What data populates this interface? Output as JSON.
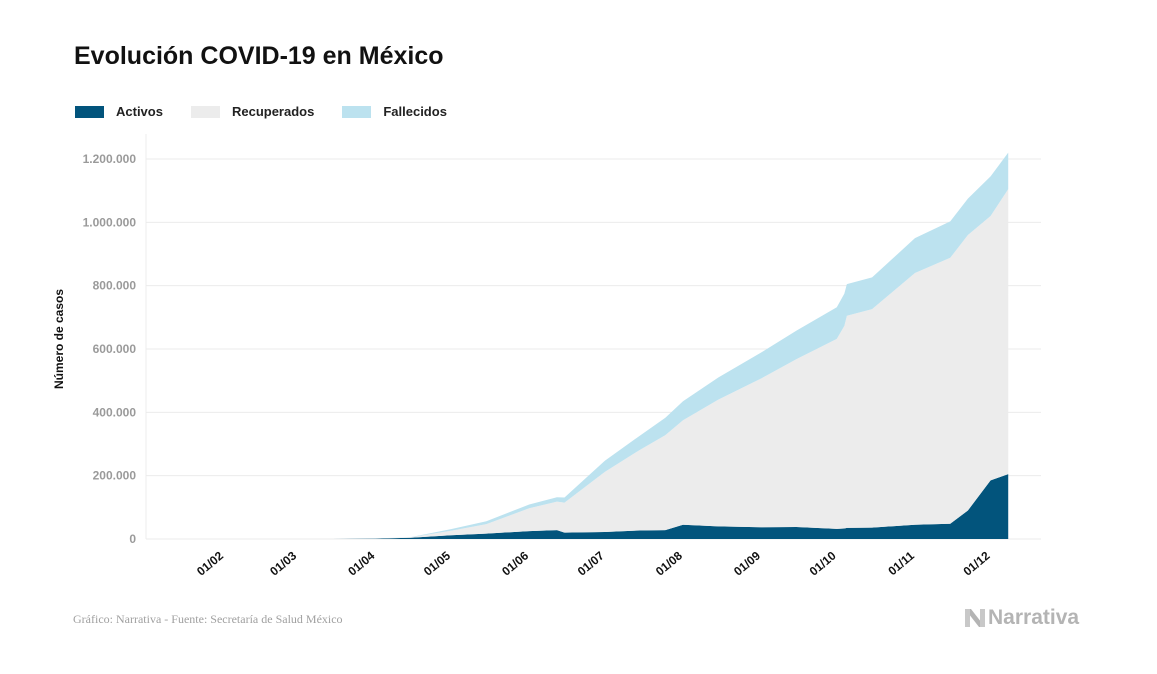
{
  "chart_data": {
    "type": "area",
    "stacked": true,
    "title": "Evolución COVID-19 en México",
    "xlabel": "",
    "ylabel": "Número de casos",
    "ylim": [
      0,
      1200000
    ],
    "xlim": [
      "2020-01-01",
      "2020-12-21"
    ],
    "grid": true,
    "legend_position": "top-left",
    "yticks": [
      0,
      200000,
      400000,
      600000,
      800000,
      1000000,
      1200000
    ],
    "ytick_labels": [
      "0",
      "200.000",
      "400.000",
      "600.000",
      "800.000",
      "1.000.000",
      "1.200.000"
    ],
    "xticks": [
      "2020-02-01",
      "2020-03-01",
      "2020-04-01",
      "2020-05-01",
      "2020-06-01",
      "2020-07-01",
      "2020-08-01",
      "2020-09-01",
      "2020-10-01",
      "2020-11-01",
      "2020-12-01"
    ],
    "xtick_labels": [
      "01/02",
      "01/03",
      "01/04",
      "01/05",
      "01/06",
      "01/07",
      "01/08",
      "01/09",
      "01/10",
      "01/11",
      "01/12"
    ],
    "x": [
      "2020-03-15",
      "2020-04-01",
      "2020-04-15",
      "2020-05-01",
      "2020-05-15",
      "2020-06-01",
      "2020-06-12",
      "2020-06-15",
      "2020-07-01",
      "2020-07-15",
      "2020-07-25",
      "2020-08-01",
      "2020-08-15",
      "2020-09-01",
      "2020-09-15",
      "2020-10-01",
      "2020-10-04",
      "2020-10-05",
      "2020-10-15",
      "2020-11-01",
      "2020-11-15",
      "2020-11-22",
      "2020-12-01",
      "2020-12-08"
    ],
    "series": [
      {
        "name": "Activos",
        "color": "#02547c",
        "values": [
          50,
          1000,
          4000,
          12000,
          17000,
          25000,
          28000,
          20000,
          22000,
          27000,
          28000,
          45000,
          40000,
          37000,
          38000,
          32000,
          33000,
          35000,
          36000,
          45000,
          48000,
          90000,
          185000,
          205000
        ]
      },
      {
        "name": "Recuperados",
        "color": "#ececec",
        "values": [
          0,
          600,
          1500,
          14000,
          30000,
          72000,
          90000,
          95000,
          190000,
          255000,
          300000,
          330000,
          400000,
          470000,
          530000,
          600000,
          640000,
          670000,
          690000,
          795000,
          840000,
          870000,
          835000,
          900000
        ]
      },
      {
        "name": "Fallecidos",
        "color": "#bce2ef",
        "values": [
          0,
          30,
          400,
          5000,
          9000,
          12000,
          14000,
          16000,
          35000,
          45000,
          55000,
          60000,
          70000,
          82000,
          90000,
          100000,
          102000,
          100000,
          100000,
          110000,
          115000,
          115000,
          125000,
          115000
        ]
      }
    ]
  },
  "footer": {
    "source": "Gráfico: Narrativa - Fuente: Secretaría de Salud México"
  },
  "logo": {
    "text": "Narrativa"
  }
}
